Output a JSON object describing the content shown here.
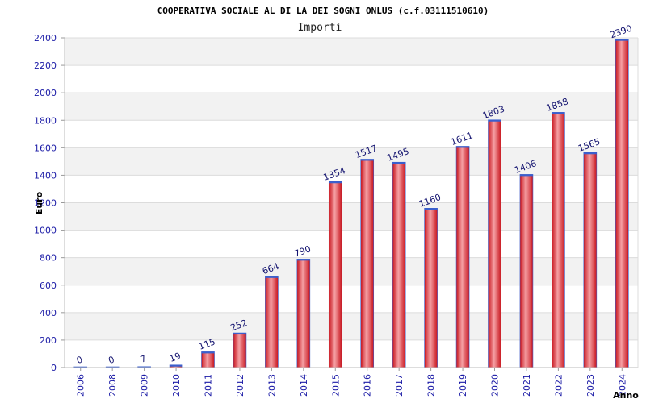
{
  "chart_data": {
    "type": "bar",
    "title": "COOPERATIVA SOCIALE AL DI LA DEI SOGNI ONLUS (c.f.03111510610)",
    "subtitle": "Importi",
    "xlabel": "Anno",
    "ylabel": "Euro",
    "ylim": [
      0,
      2400
    ],
    "yticks": [
      0,
      200,
      400,
      600,
      800,
      1000,
      1200,
      1400,
      1600,
      1800,
      2000,
      2200,
      2400
    ],
    "grid": true,
    "categories": [
      "2006",
      "2008",
      "2009",
      "2010",
      "2011",
      "2012",
      "2013",
      "2014",
      "2015",
      "2016",
      "2017",
      "2018",
      "2019",
      "2020",
      "2021",
      "2022",
      "2023",
      "2024"
    ],
    "values": [
      0,
      0,
      7,
      19,
      115,
      252,
      664,
      790,
      1354,
      1517,
      1495,
      1160,
      1611,
      1803,
      1406,
      1858,
      1565,
      2390
    ],
    "colors": {
      "bar": "#e0242e",
      "bar_highlight": "#f5a0a4",
      "bar_edge": "#3a5fcd",
      "band": "#f2f2f2",
      "tick_text": "#1a1aa6"
    }
  }
}
